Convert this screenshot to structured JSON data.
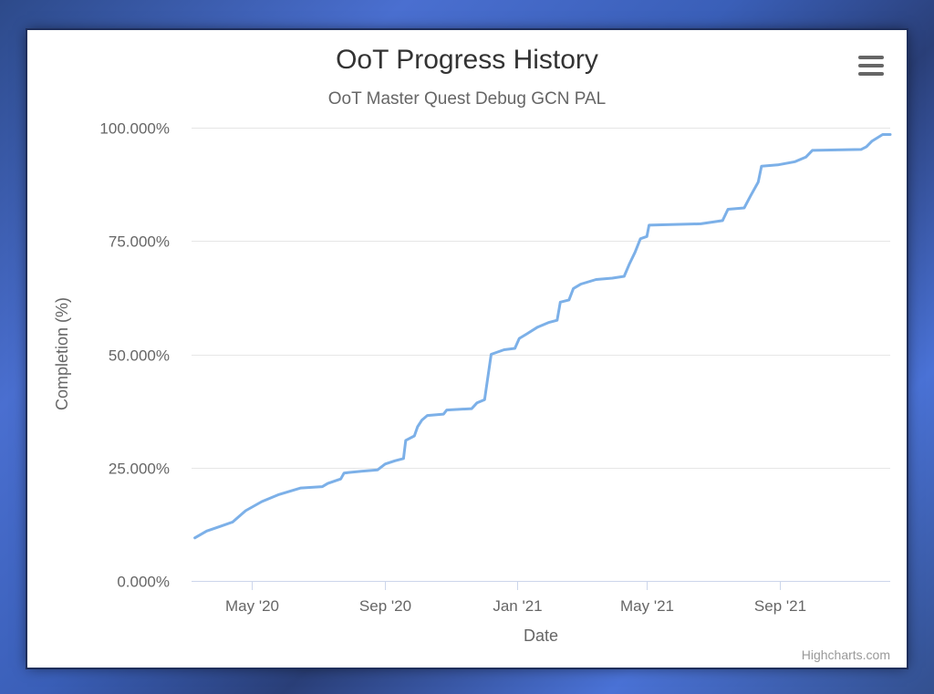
{
  "chart_data": {
    "type": "line",
    "title": "OoT Progress History",
    "subtitle": "OoT Master Quest Debug GCN PAL",
    "xlabel": "Date",
    "ylabel": "Completion (%)",
    "ylim": [
      0,
      100
    ],
    "xlim": [
      "2020-03-06",
      "2021-12-12"
    ],
    "y_ticks": [
      {
        "value": 0,
        "label": "0.000%"
      },
      {
        "value": 25,
        "label": "25.000%"
      },
      {
        "value": 50,
        "label": "50.000%"
      },
      {
        "value": 75,
        "label": "75.000%"
      },
      {
        "value": 100,
        "label": "100.000%"
      }
    ],
    "x_ticks": [
      {
        "value": "2020-05-01",
        "label": "May '20"
      },
      {
        "value": "2020-09-01",
        "label": "Sep '20"
      },
      {
        "value": "2021-01-01",
        "label": "Jan '21"
      },
      {
        "value": "2021-05-01",
        "label": "May '21"
      },
      {
        "value": "2021-09-01",
        "label": "Sep '21"
      }
    ],
    "grid": true,
    "legend": "none",
    "series": [
      {
        "color": "#7cb0e8",
        "points": [
          [
            "2020-03-09",
            9.5
          ],
          [
            "2020-03-20",
            11.0
          ],
          [
            "2020-04-01",
            12.0
          ],
          [
            "2020-04-13",
            13.0
          ],
          [
            "2020-04-25",
            15.5
          ],
          [
            "2020-05-10",
            17.5
          ],
          [
            "2020-05-25",
            19.0
          ],
          [
            "2020-06-15",
            20.5
          ],
          [
            "2020-07-05",
            20.8
          ],
          [
            "2020-07-10",
            21.5
          ],
          [
            "2020-07-22",
            22.5
          ],
          [
            "2020-07-25",
            23.8
          ],
          [
            "2020-08-10",
            24.2
          ],
          [
            "2020-08-25",
            24.5
          ],
          [
            "2020-09-01",
            25.8
          ],
          [
            "2020-09-10",
            26.5
          ],
          [
            "2020-09-18",
            27.0
          ],
          [
            "2020-09-20",
            31.0
          ],
          [
            "2020-09-28",
            32.0
          ],
          [
            "2020-10-01",
            34.0
          ],
          [
            "2020-10-05",
            35.5
          ],
          [
            "2020-10-10",
            36.5
          ],
          [
            "2020-10-25",
            36.8
          ],
          [
            "2020-10-28",
            37.7
          ],
          [
            "2020-11-20",
            38.0
          ],
          [
            "2020-11-25",
            39.3
          ],
          [
            "2020-12-02",
            40.0
          ],
          [
            "2020-12-05",
            45.0
          ],
          [
            "2020-12-08",
            50.0
          ],
          [
            "2020-12-20",
            51.0
          ],
          [
            "2020-12-30",
            51.3
          ],
          [
            "2021-01-03",
            53.5
          ],
          [
            "2021-01-10",
            54.5
          ],
          [
            "2021-01-20",
            56.0
          ],
          [
            "2021-01-30",
            57.0
          ],
          [
            "2021-02-07",
            57.5
          ],
          [
            "2021-02-10",
            61.5
          ],
          [
            "2021-02-18",
            62.0
          ],
          [
            "2021-02-22",
            64.5
          ],
          [
            "2021-03-01",
            65.5
          ],
          [
            "2021-03-15",
            66.5
          ],
          [
            "2021-03-30",
            66.8
          ],
          [
            "2021-04-10",
            67.2
          ],
          [
            "2021-04-15",
            70.0
          ],
          [
            "2021-04-20",
            72.5
          ],
          [
            "2021-04-25",
            75.5
          ],
          [
            "2021-05-01",
            76.0
          ],
          [
            "2021-05-03",
            78.5
          ],
          [
            "2021-06-20",
            78.8
          ],
          [
            "2021-07-10",
            79.5
          ],
          [
            "2021-07-15",
            82.0
          ],
          [
            "2021-07-30",
            82.3
          ],
          [
            "2021-08-05",
            85.0
          ],
          [
            "2021-08-12",
            88.0
          ],
          [
            "2021-08-15",
            91.5
          ],
          [
            "2021-08-30",
            91.8
          ],
          [
            "2021-09-15",
            92.5
          ],
          [
            "2021-09-25",
            93.5
          ],
          [
            "2021-10-01",
            95.0
          ],
          [
            "2021-11-15",
            95.2
          ],
          [
            "2021-11-20",
            95.8
          ],
          [
            "2021-11-25",
            97.0
          ],
          [
            "2021-12-05",
            98.5
          ],
          [
            "2021-12-12",
            98.5
          ]
        ]
      }
    ]
  },
  "credits": "Highcharts.com",
  "menu": {
    "icon": "hamburger-menu-icon"
  }
}
